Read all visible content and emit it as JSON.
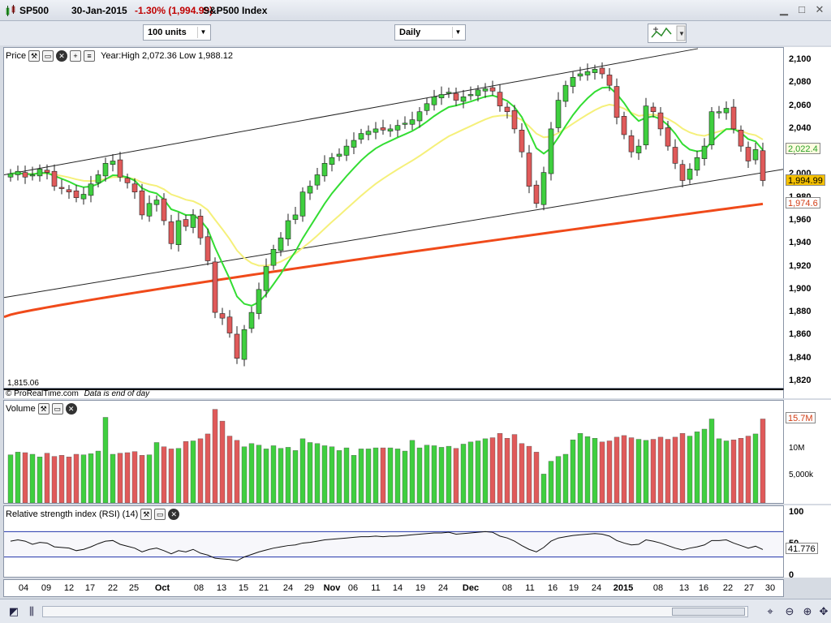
{
  "window": {
    "symbol": "SP500",
    "date": "30-Jan-2015",
    "change": "-1.30% (1,994.99)",
    "instrument": "S&P500 Index"
  },
  "toolbar": {
    "units": "100 units",
    "period": "Daily"
  },
  "price_panel": {
    "label": "Price",
    "info": "Year:High 2,072.36 Low 1,988.12",
    "low_marker": "1,815.06",
    "copyright": "© ProRealTime.com",
    "notice": "Data is end of day",
    "y_axis_labels": [
      "2,100",
      "2,080",
      "2,060",
      "2,040",
      "2,020",
      "2,000",
      "1,980",
      "1,960",
      "1,940",
      "1,920",
      "1,900",
      "1,880",
      "1,860",
      "1,840",
      "1,820"
    ],
    "tags": {
      "ma_fast": "2,022.4",
      "last": "1,994.99",
      "ma_long": "1,974.6"
    },
    "colors": {
      "up": "#3fcf3f",
      "down": "#e05a5a",
      "ma_fast": "#33dd33",
      "ma_mid": "#f5f07a",
      "ma_long": "#f04a1a",
      "channel": "#222222"
    }
  },
  "volume_panel": {
    "label": "Volume",
    "y_axis_labels": [
      "10M",
      "5,000k"
    ],
    "tag": "15.7M"
  },
  "rsi_panel": {
    "label": "Relative strength index (RSI) (14)",
    "y_axis_labels": [
      "100",
      "50",
      "0"
    ],
    "tag": "41.776"
  },
  "x_axis": {
    "labels": [
      {
        "t": "04",
        "b": false
      },
      {
        "t": "09",
        "b": false
      },
      {
        "t": "12",
        "b": false
      },
      {
        "t": "17",
        "b": false
      },
      {
        "t": "22",
        "b": false
      },
      {
        "t": "25",
        "b": false
      },
      {
        "t": "Oct",
        "b": true
      },
      {
        "t": "08",
        "b": false
      },
      {
        "t": "13",
        "b": false
      },
      {
        "t": "15",
        "b": false
      },
      {
        "t": "21",
        "b": false
      },
      {
        "t": "24",
        "b": false
      },
      {
        "t": "29",
        "b": false
      },
      {
        "t": "Nov",
        "b": true
      },
      {
        "t": "06",
        "b": false
      },
      {
        "t": "11",
        "b": false
      },
      {
        "t": "14",
        "b": false
      },
      {
        "t": "19",
        "b": false
      },
      {
        "t": "24",
        "b": false
      },
      {
        "t": "Dec",
        "b": true
      },
      {
        "t": "08",
        "b": false
      },
      {
        "t": "11",
        "b": false
      },
      {
        "t": "16",
        "b": false
      },
      {
        "t": "19",
        "b": false
      },
      {
        "t": "24",
        "b": false
      },
      {
        "t": "2015",
        "b": true
      },
      {
        "t": "08",
        "b": false
      },
      {
        "t": "13",
        "b": false
      },
      {
        "t": "16",
        "b": false
      },
      {
        "t": "22",
        "b": false
      },
      {
        "t": "27",
        "b": false
      },
      {
        "t": "30",
        "b": false
      }
    ]
  },
  "chart_data": {
    "type": "candlestick",
    "y_range": [
      1815,
      2105
    ],
    "closes": [
      2001,
      2003,
      1998,
      2000,
      2005,
      2002,
      1990,
      1988,
      1985,
      1980,
      1983,
      1992,
      2000,
      2010,
      2012,
      1998,
      1993,
      1985,
      1965,
      1975,
      1978,
      1960,
      1940,
      1960,
      1955,
      1965,
      1945,
      1925,
      1880,
      1875,
      1862,
      1840,
      1865,
      1880,
      1900,
      1920,
      1935,
      1945,
      1960,
      1965,
      1985,
      1990,
      2000,
      2010,
      2015,
      2018,
      2025,
      2030,
      2036,
      2038,
      2040,
      2039,
      2040,
      2043,
      2045,
      2048,
      2055,
      2062,
      2068,
      2070,
      2072,
      2065,
      2068,
      2070,
      2074,
      2075,
      2073,
      2060,
      2055,
      2040,
      2020,
      1990,
      1975,
      2002,
      2040,
      2065,
      2078,
      2085,
      2088,
      2090,
      2092,
      2088,
      2078,
      2050,
      2035,
      2020,
      2025,
      2060,
      2055,
      2040,
      2025,
      2010,
      1995,
      2005,
      2015,
      2025,
      2055,
      2055,
      2058,
      2040,
      2025,
      2012,
      2022,
      1995
    ],
    "volumes": [
      9.0,
      9.5,
      9.4,
      9.1,
      8.6,
      9.3,
      8.7,
      8.9,
      8.6,
      9.1,
      9.0,
      9.2,
      9.7,
      16.0,
      9.1,
      9.3,
      9.4,
      9.6,
      8.9,
      9.0,
      11.3,
      10.5,
      10.1,
      10.2,
      11.5,
      11.6,
      12.0,
      12.9,
      17.5,
      15.3,
      12.5,
      11.7,
      10.5,
      11.1,
      10.8,
      10.1,
      10.7,
      10.2,
      10.4,
      9.8,
      12.0,
      11.3,
      11.1,
      10.7,
      10.5,
      9.8,
      10.3,
      8.9,
      10.1,
      10.1,
      10.3,
      10.3,
      10.3,
      10.1,
      9.7,
      11.7,
      10.3,
      10.8,
      10.7,
      10.4,
      10.6,
      10.2,
      11.0,
      11.4,
      11.6,
      12.0,
      12.2,
      13.0,
      12.1,
      12.8,
      11.1,
      10.6,
      9.5,
      5.4,
      7.8,
      8.7,
      9.1,
      11.8,
      13.0,
      12.4,
      12.1,
      11.4,
      11.6,
      12.3,
      12.6,
      12.2,
      11.9,
      11.7,
      11.9,
      12.3,
      11.9,
      12.3,
      13.0,
      12.5,
      13.3,
      13.8,
      15.7,
      12.0,
      11.6,
      11.8,
      12.1,
      12.5,
      12.9,
      15.7
    ],
    "rsi": [
      55,
      57,
      55,
      50,
      53,
      52,
      46,
      45,
      44,
      40,
      42,
      46,
      51,
      55,
      56,
      50,
      47,
      44,
      38,
      42,
      44,
      40,
      35,
      40,
      38,
      42,
      36,
      33,
      28,
      27,
      26,
      24,
      30,
      34,
      38,
      41,
      44,
      46,
      48,
      49,
      52,
      53,
      55,
      57,
      58,
      59,
      60,
      61,
      62,
      62,
      63,
      62,
      63,
      63,
      64,
      65,
      66,
      67,
      68,
      68,
      69,
      66,
      67,
      68,
      69,
      70,
      69,
      63,
      60,
      55,
      48,
      42,
      38,
      45,
      55,
      60,
      62,
      64,
      65,
      66,
      67,
      66,
      63,
      56,
      52,
      49,
      50,
      57,
      55,
      52,
      48,
      44,
      41,
      44,
      46,
      49,
      56,
      56,
      57,
      52,
      48,
      44,
      47,
      41.8
    ]
  }
}
